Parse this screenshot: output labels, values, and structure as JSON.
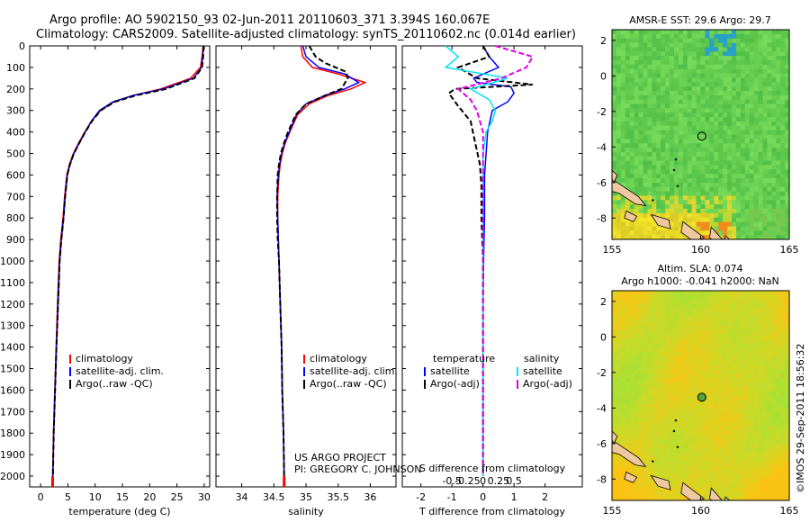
{
  "header": {
    "line1": "Argo profile: AO 5902150_93 02-Jun-2011 20110603_371 3.394S 160.067E",
    "line2": "Climatology: CARS2009. Satellite-adjusted climatology: synTS_20110602.nc (0.014d earlier)"
  },
  "credit": {
    "line1": "US ARGO PROJECT",
    "line2": "PI: GREGORY C. JOHNSON"
  },
  "watermark": "©IMOS 29-Sep-2011 18:56:32",
  "colors": {
    "clim": "#ff0000",
    "sat": "#0000ff",
    "argo": "#000000",
    "sat_s": "#00e5ee",
    "argo_s": "#e000e0"
  },
  "chart_data": [
    {
      "id": "temperature",
      "type": "line",
      "xlabel": "temperature (deg C)",
      "ylabel": "",
      "xlim": [
        -2,
        31
      ],
      "ylim": [
        2050,
        0
      ],
      "xticks": [
        0,
        5,
        10,
        15,
        20,
        25,
        30
      ],
      "xtick_labels": [
        "0",
        "5",
        "10",
        "15",
        "20",
        "25",
        "30"
      ],
      "yticks": [
        0,
        100,
        200,
        300,
        400,
        500,
        600,
        700,
        800,
        900,
        1000,
        1100,
        1200,
        1300,
        1400,
        1500,
        1600,
        1700,
        1800,
        1900,
        2000
      ],
      "ytick_labels": [
        "0",
        "100",
        "200",
        "300",
        "400",
        "500",
        "600",
        "700",
        "800",
        "900",
        "1000",
        "1100",
        "1200",
        "1300",
        "1400",
        "1500",
        "1600",
        "1700",
        "1800",
        "1900",
        "2000"
      ],
      "legend": [
        "climatology",
        "satellite-adj. clim.",
        "Argo(..raw -QC)"
      ],
      "series": [
        {
          "name": "climatology",
          "style": "clim",
          "x": [
            29.8,
            29.6,
            29.3,
            27.5,
            22,
            17,
            13.5,
            11,
            9.3,
            8.1,
            7,
            6,
            5.3,
            4.8,
            4.4,
            4.1,
            3.7,
            3.4,
            3.1,
            2.85,
            2.6,
            2.35,
            2.2
          ],
          "y": [
            0,
            50,
            100,
            150,
            200,
            230,
            260,
            300,
            350,
            400,
            450,
            500,
            550,
            600,
            700,
            800,
            900,
            1000,
            1200,
            1400,
            1600,
            1800,
            2000
          ]
        },
        {
          "name": "satellite-adj. clim.",
          "style": "sat",
          "x": [
            29.9,
            29.7,
            29.5,
            28,
            22.5,
            17,
            13.3,
            10.8,
            9.3,
            8.2,
            7.1,
            6.1,
            5.4,
            4.9,
            4.5,
            4.2,
            3.8,
            3.5,
            3.2,
            2.9,
            2.65,
            2.4,
            2.25
          ],
          "y": [
            0,
            50,
            100,
            150,
            200,
            230,
            260,
            300,
            350,
            400,
            450,
            500,
            550,
            600,
            700,
            800,
            900,
            1000,
            1200,
            1400,
            1600,
            1800,
            2000
          ]
        },
        {
          "name": "Argo(..raw -QC)",
          "style": "argo",
          "x": [
            29.9,
            29.8,
            29.6,
            28.2,
            23,
            17.5,
            13.6,
            11,
            9.4,
            8.2,
            7.1,
            6.1,
            5.4,
            4.9,
            4.5,
            4.2,
            3.8,
            3.5,
            3.2,
            2.9,
            2.65,
            2.4,
            2.25
          ],
          "y": [
            0,
            50,
            100,
            150,
            200,
            230,
            260,
            300,
            350,
            400,
            450,
            500,
            550,
            600,
            700,
            800,
            900,
            1000,
            1200,
            1400,
            1600,
            1800,
            2000
          ]
        }
      ]
    },
    {
      "id": "salinity",
      "type": "line",
      "xlabel": "salinity",
      "ylabel": "",
      "xlim": [
        33.6,
        36.4
      ],
      "ylim": [
        2050,
        0
      ],
      "xticks": [
        34,
        34.5,
        35,
        35.5,
        36
      ],
      "xtick_labels": [
        "34",
        "34.5",
        "35",
        "35.5",
        "36"
      ],
      "legend": [
        "climatology",
        "satellite-adj. clim.",
        "Argo(..raw -QC)"
      ],
      "series": [
        {
          "name": "climatology",
          "style": "clim",
          "x": [
            34.92,
            34.95,
            35.1,
            35.5,
            35.92,
            35.7,
            35.35,
            35.05,
            34.87,
            34.75,
            34.68,
            34.63,
            34.6,
            34.58,
            34.56,
            34.56,
            34.57,
            34.58,
            34.6,
            34.62,
            34.63,
            34.65,
            34.66
          ],
          "y": [
            0,
            50,
            100,
            130,
            170,
            200,
            230,
            270,
            320,
            400,
            450,
            500,
            550,
            600,
            700,
            800,
            900,
            1000,
            1200,
            1400,
            1600,
            1800,
            2000
          ]
        },
        {
          "name": "satellite-adj. clim.",
          "style": "sat",
          "x": [
            34.95,
            35.0,
            35.2,
            35.6,
            35.82,
            35.6,
            35.3,
            35.0,
            34.85,
            34.74,
            34.67,
            34.62,
            34.59,
            34.57,
            34.55,
            34.56,
            34.57,
            34.58,
            34.6,
            34.62,
            34.63,
            34.65,
            34.66
          ],
          "y": [
            0,
            50,
            100,
            130,
            170,
            200,
            230,
            270,
            320,
            400,
            450,
            500,
            550,
            600,
            700,
            800,
            900,
            1000,
            1200,
            1400,
            1600,
            1800,
            2000
          ]
        },
        {
          "name": "Argo(..raw -QC)",
          "style": "argo",
          "x": [
            35.05,
            35.15,
            35.3,
            35.62,
            35.65,
            35.55,
            35.3,
            35.0,
            34.84,
            34.72,
            34.66,
            34.61,
            34.58,
            34.56,
            34.55,
            34.55,
            34.56,
            34.58,
            34.6,
            34.62,
            34.63,
            34.65,
            34.66
          ],
          "y": [
            0,
            50,
            80,
            120,
            150,
            200,
            230,
            270,
            320,
            400,
            450,
            500,
            550,
            600,
            700,
            800,
            900,
            1000,
            1200,
            1400,
            1600,
            1800,
            2000
          ]
        }
      ]
    },
    {
      "id": "difference",
      "type": "line",
      "xlabel": "T difference from climatology",
      "xlabel_top": "S difference from climatology",
      "xlim": [
        -2.6,
        3.2
      ],
      "ylim": [
        2050,
        0
      ],
      "xticks": [
        -2,
        -1,
        0,
        1,
        2
      ],
      "xtick_labels": [
        "-2",
        "-1",
        "0",
        "1",
        "2"
      ],
      "sticks": [
        -0.5,
        -0.25,
        0,
        0.25,
        0.5
      ],
      "stick_labels": [
        "-0.5",
        "-0.25",
        "0",
        "0.25",
        "0.5"
      ],
      "s_scale": 2,
      "legend_titles": [
        "temperature",
        "salinity"
      ],
      "legend": [
        "satellite",
        "Argo(-adj)",
        "satellite",
        "Argo(-adj)"
      ],
      "series": [
        {
          "name": "T satellite",
          "style": "sat",
          "x": [
            0,
            0.2,
            0.5,
            -0.3,
            -0.2,
            0.9,
            1.0,
            0.8,
            0.3,
            0.15,
            0.1,
            0.05,
            0.05,
            0.02,
            0.0,
            0.0,
            0.0,
            0.0
          ],
          "y": [
            0,
            50,
            100,
            150,
            170,
            190,
            220,
            260,
            300,
            400,
            500,
            600,
            800,
            1000,
            1200,
            1500,
            1800,
            2000
          ]
        },
        {
          "name": "T Argo(-adj)",
          "style": "argo",
          "x": [
            0,
            0.2,
            -0.8,
            -0.2,
            1.6,
            -0.9,
            -1.1,
            -0.8,
            -0.4,
            -0.25,
            -0.1,
            -0.05,
            -0.05,
            0,
            0,
            0,
            0,
            0
          ],
          "y": [
            0,
            50,
            100,
            150,
            180,
            200,
            220,
            280,
            350,
            450,
            550,
            650,
            800,
            1000,
            1200,
            1500,
            1800,
            2000
          ]
        },
        {
          "name": "S satellite",
          "style": "sat_s",
          "x": [
            -0.6,
            -0.4,
            -0.6,
            0.4,
            -0.2,
            0.1,
            0.2,
            0.15,
            0.05,
            0.0,
            0.0,
            0.0,
            0.0,
            0.0,
            0.0,
            0.0,
            0.0
          ],
          "y": [
            0,
            50,
            100,
            150,
            200,
            250,
            300,
            350,
            400,
            500,
            600,
            800,
            1000,
            1300,
            1600,
            1800,
            2000
          ]
        },
        {
          "name": "S Argo(-adj)",
          "style": "argo_s",
          "x": [
            0.2,
            0.8,
            0.7,
            0.3,
            -0.4,
            -0.2,
            -0.1,
            0.0,
            0.0,
            0.0,
            0.0,
            0.0,
            0.0,
            0.0
          ],
          "y": [
            0,
            50,
            100,
            150,
            200,
            250,
            300,
            400,
            500,
            700,
            900,
            1200,
            1600,
            2000
          ]
        }
      ]
    },
    {
      "id": "sst_map",
      "type": "heatmap",
      "title": "AMSR-E SST: 29.6 Argo: 29.7",
      "xlim": [
        155,
        165
      ],
      "ylim": [
        -9.2,
        2.6
      ],
      "xticks": [
        155,
        160,
        165
      ],
      "xtick_labels": [
        "155",
        "160",
        "165"
      ],
      "yticks": [
        2,
        0,
        -2,
        -4,
        -6,
        -8
      ],
      "ytick_labels": [
        "2",
        "0",
        "-2",
        "-4",
        "-6",
        "-8"
      ],
      "marker": {
        "lon": 160.067,
        "lat": -3.394
      }
    },
    {
      "id": "sla_map",
      "type": "heatmap",
      "title": "Altim. SLA: 0.074",
      "subtitle": "Argo h1000: -0.041 h2000: NaN",
      "xlim": [
        155,
        165
      ],
      "ylim": [
        -9.2,
        2.6
      ],
      "xticks": [
        155,
        160,
        165
      ],
      "xtick_labels": [
        "155",
        "160",
        "165"
      ],
      "yticks": [
        2,
        0,
        -2,
        -4,
        -6,
        -8
      ],
      "ytick_labels": [
        "2",
        "0",
        "-2",
        "-4",
        "-6",
        "-8"
      ],
      "marker": {
        "lon": 160.067,
        "lat": -3.394
      }
    }
  ]
}
